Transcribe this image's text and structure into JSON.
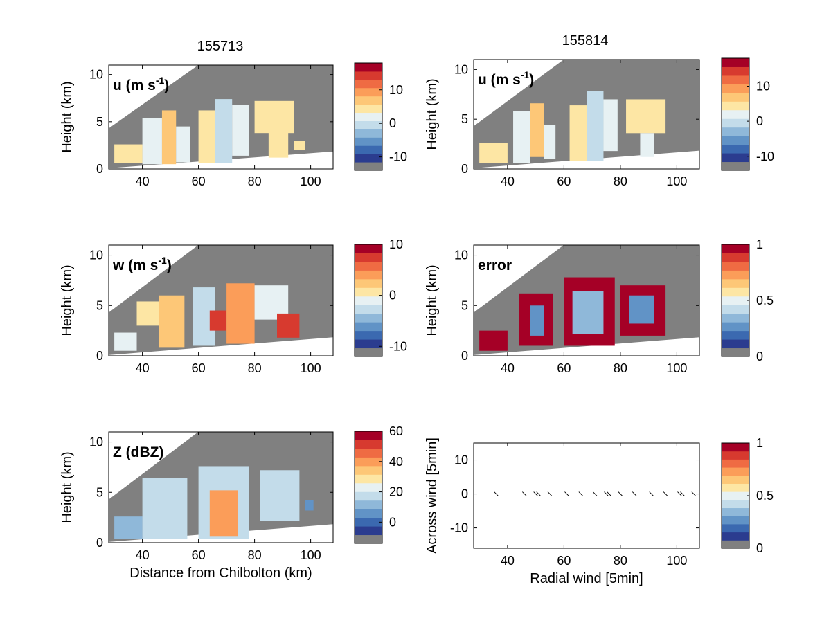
{
  "figure": {
    "title_left": "155713",
    "title_right": "155814",
    "colors": {
      "missing": "#808080",
      "frame": "#000000",
      "scale": [
        "#2b3c8f",
        "#3b69b0",
        "#6193c6",
        "#8fb8d9",
        "#c3dcea",
        "#e7f1f3",
        "#fde6a4",
        "#fdc777",
        "#fb9d59",
        "#ef6b43",
        "#d73a2f",
        "#a50026"
      ]
    },
    "panels": [
      {
        "id": "u-left",
        "var_label": "u (m s",
        "var_sup": "-1",
        "var_close": ")",
        "ylabel": "Height (km)",
        "xlabel": "",
        "yticks": [
          "0",
          "5",
          "10"
        ],
        "xticks": [
          "40",
          "60",
          "80",
          "100"
        ],
        "cbar_ticks": [
          "10",
          "0",
          "-10"
        ]
      },
      {
        "id": "u-right",
        "var_label": "u (m s",
        "var_sup": "-1",
        "var_close": ")",
        "ylabel": "Height (km)",
        "xlabel": "",
        "yticks": [
          "0",
          "5",
          "10"
        ],
        "xticks": [
          "40",
          "60",
          "80",
          "100"
        ],
        "cbar_ticks": [
          "10",
          "0",
          "-10"
        ]
      },
      {
        "id": "w-left",
        "var_label": "w (m s",
        "var_sup": "-1",
        "var_close": ")",
        "ylabel": "Height (km)",
        "xlabel": "",
        "yticks": [
          "0",
          "5",
          "10"
        ],
        "xticks": [
          "40",
          "60",
          "80",
          "100"
        ],
        "cbar_ticks": [
          "10",
          "0",
          "-10"
        ]
      },
      {
        "id": "error-right",
        "var_label": "error",
        "var_sup": "",
        "var_close": "",
        "ylabel": "Height (km)",
        "xlabel": "",
        "yticks": [
          "0",
          "5",
          "10"
        ],
        "xticks": [
          "40",
          "60",
          "80",
          "100"
        ],
        "cbar_ticks": [
          "1",
          "0.5",
          "0"
        ]
      },
      {
        "id": "z-left",
        "var_label": "Z (dBZ)",
        "var_sup": "",
        "var_close": "",
        "ylabel": "Height (km)",
        "xlabel": "Distance from Chilbolton (km)",
        "yticks": [
          "0",
          "5",
          "10"
        ],
        "xticks": [
          "40",
          "60",
          "80",
          "100"
        ],
        "cbar_ticks": [
          "60",
          "40",
          "20",
          "0"
        ]
      },
      {
        "id": "wind-right",
        "var_label": "",
        "var_sup": "",
        "var_close": "",
        "ylabel": "Across wind [5min]",
        "xlabel": "Radial wind [5min]",
        "yticks": [
          "10",
          "0",
          "-10"
        ],
        "xticks": [
          "40",
          "60",
          "80",
          "100"
        ],
        "cbar_ticks": [
          "1",
          "0.5",
          "0"
        ]
      }
    ]
  },
  "chart_data": [
    {
      "type": "heatmap",
      "panel": "u-left",
      "title": "155713",
      "label": "u (m s-1)",
      "xlabel": "",
      "ylabel": "Height (km)",
      "xlim": [
        28,
        108
      ],
      "ylim": [
        0,
        11
      ],
      "clim": [
        -14,
        18
      ],
      "cbar_ticks": [
        10,
        0,
        -10
      ],
      "cells": [
        {
          "x": [
            30,
            40
          ],
          "y": [
            0.6,
            2.6
          ],
          "value": 5
        },
        {
          "x": [
            40,
            47
          ],
          "y": [
            0.5,
            5.4
          ],
          "value": 3
        },
        {
          "x": [
            47,
            52
          ],
          "y": [
            0.5,
            6.2
          ],
          "value": 6
        },
        {
          "x": [
            52,
            57
          ],
          "y": [
            0.7,
            4.5
          ],
          "value": 3
        },
        {
          "x": [
            60,
            66
          ],
          "y": [
            0.6,
            6.2
          ],
          "value": 4
        },
        {
          "x": [
            66,
            72
          ],
          "y": [
            0.6,
            7.4
          ],
          "value": -1
        },
        {
          "x": [
            72,
            78
          ],
          "y": [
            1.4,
            6.8
          ],
          "value": 1
        },
        {
          "x": [
            80,
            94
          ],
          "y": [
            3.8,
            7.2
          ],
          "value": 5
        },
        {
          "x": [
            85,
            92
          ],
          "y": [
            1.2,
            4.2
          ],
          "value": 4
        },
        {
          "x": [
            94,
            98
          ],
          "y": [
            2.0,
            3.0
          ],
          "value": 4
        }
      ]
    },
    {
      "type": "heatmap",
      "panel": "u-right",
      "title": "155814",
      "label": "u (m s-1)",
      "xlabel": "",
      "ylabel": "Height (km)",
      "xlim": [
        28,
        108
      ],
      "ylim": [
        0,
        11
      ],
      "clim": [
        -14,
        18
      ],
      "cbar_ticks": [
        10,
        0,
        -10
      ],
      "cells": [
        {
          "x": [
            30,
            40
          ],
          "y": [
            0.6,
            2.6
          ],
          "value": 4
        },
        {
          "x": [
            42,
            48
          ],
          "y": [
            0.6,
            5.8
          ],
          "value": 3
        },
        {
          "x": [
            48,
            53
          ],
          "y": [
            1.2,
            6.6
          ],
          "value": 6
        },
        {
          "x": [
            53,
            57
          ],
          "y": [
            1.0,
            4.4
          ],
          "value": 3
        },
        {
          "x": [
            62,
            68
          ],
          "y": [
            0.8,
            6.4
          ],
          "value": 4
        },
        {
          "x": [
            68,
            74
          ],
          "y": [
            0.8,
            7.8
          ],
          "value": -1
        },
        {
          "x": [
            74,
            79
          ],
          "y": [
            1.8,
            7.0
          ],
          "value": 2
        },
        {
          "x": [
            82,
            96
          ],
          "y": [
            3.6,
            7.0
          ],
          "value": 5
        },
        {
          "x": [
            87,
            92
          ],
          "y": [
            1.2,
            3.6
          ],
          "value": 3
        }
      ]
    },
    {
      "type": "heatmap",
      "panel": "w-left",
      "title": "",
      "label": "w (m s-1)",
      "xlabel": "",
      "ylabel": "Height (km)",
      "xlim": [
        28,
        108
      ],
      "ylim": [
        0,
        11
      ],
      "clim": [
        -12,
        10
      ],
      "cbar_ticks": [
        10,
        0,
        -10
      ],
      "cells": [
        {
          "x": [
            30,
            38
          ],
          "y": [
            0.5,
            2.3
          ],
          "value": -1
        },
        {
          "x": [
            38,
            46
          ],
          "y": [
            3.0,
            5.4
          ],
          "value": 1
        },
        {
          "x": [
            46,
            55
          ],
          "y": [
            0.8,
            6.0
          ],
          "value": 3
        },
        {
          "x": [
            58,
            66
          ],
          "y": [
            1.0,
            6.8
          ],
          "value": -2
        },
        {
          "x": [
            64,
            70
          ],
          "y": [
            2.5,
            4.5
          ],
          "value": 7
        },
        {
          "x": [
            70,
            80
          ],
          "y": [
            1.2,
            7.2
          ],
          "value": 4
        },
        {
          "x": [
            80,
            92
          ],
          "y": [
            3.6,
            7.0
          ],
          "value": -1
        },
        {
          "x": [
            88,
            96
          ],
          "y": [
            1.8,
            4.2
          ],
          "value": 7
        }
      ]
    },
    {
      "type": "heatmap",
      "panel": "error-right",
      "title": "",
      "label": "error",
      "xlabel": "",
      "ylabel": "Height (km)",
      "xlim": [
        28,
        108
      ],
      "ylim": [
        0,
        11
      ],
      "clim": [
        0,
        1
      ],
      "cbar_ticks": [
        1,
        0.5,
        0
      ],
      "cells": [
        {
          "x": [
            30,
            40
          ],
          "y": [
            0.5,
            2.5
          ],
          "value": 0.95
        },
        {
          "x": [
            44,
            56
          ],
          "y": [
            1.0,
            6.2
          ],
          "value": 0.95
        },
        {
          "x": [
            48,
            53
          ],
          "y": [
            2.0,
            5.0
          ],
          "value": 0.25
        },
        {
          "x": [
            60,
            78
          ],
          "y": [
            1.0,
            7.8
          ],
          "value": 0.95
        },
        {
          "x": [
            63,
            74
          ],
          "y": [
            2.2,
            6.4
          ],
          "value": 0.35
        },
        {
          "x": [
            80,
            96
          ],
          "y": [
            2.0,
            7.0
          ],
          "value": 0.95
        },
        {
          "x": [
            83,
            92
          ],
          "y": [
            3.2,
            6.0
          ],
          "value": 0.3
        }
      ]
    },
    {
      "type": "heatmap",
      "panel": "z-left",
      "title": "",
      "label": "Z (dBZ)",
      "xlabel": "Distance from Chilbolton (km)",
      "ylabel": "Height (km)",
      "xlim": [
        28,
        108
      ],
      "ylim": [
        0,
        11
      ],
      "clim": [
        -14,
        60
      ],
      "cbar_ticks": [
        60,
        40,
        20,
        0
      ],
      "cells": [
        {
          "x": [
            30,
            40
          ],
          "y": [
            0.4,
            2.6
          ],
          "value": 12
        },
        {
          "x": [
            40,
            56
          ],
          "y": [
            0.4,
            6.4
          ],
          "value": 16
        },
        {
          "x": [
            60,
            78
          ],
          "y": [
            0.4,
            7.6
          ],
          "value": 20
        },
        {
          "x": [
            64,
            74
          ],
          "y": [
            0.6,
            5.2
          ],
          "value": 38
        },
        {
          "x": [
            82,
            96
          ],
          "y": [
            2.2,
            7.2
          ],
          "value": 18
        },
        {
          "x": [
            98,
            101
          ],
          "y": [
            3.2,
            4.2
          ],
          "value": 8
        }
      ]
    },
    {
      "type": "scatter",
      "panel": "wind-right",
      "title": "",
      "xlabel": "Radial wind [5min]",
      "ylabel": "Across wind [5min]",
      "xlim": [
        28,
        108
      ],
      "ylim": [
        -16,
        15
      ],
      "cbar_ticks": [
        1,
        0.5,
        0
      ],
      "x": [
        36,
        46,
        50,
        51,
        55,
        61,
        66,
        71,
        75,
        76,
        80,
        85,
        91,
        96,
        101,
        102,
        106
      ],
      "y": [
        0,
        0,
        0,
        0,
        0,
        0,
        0,
        0,
        0,
        0,
        0,
        0,
        0,
        0,
        0,
        0,
        0
      ]
    }
  ]
}
